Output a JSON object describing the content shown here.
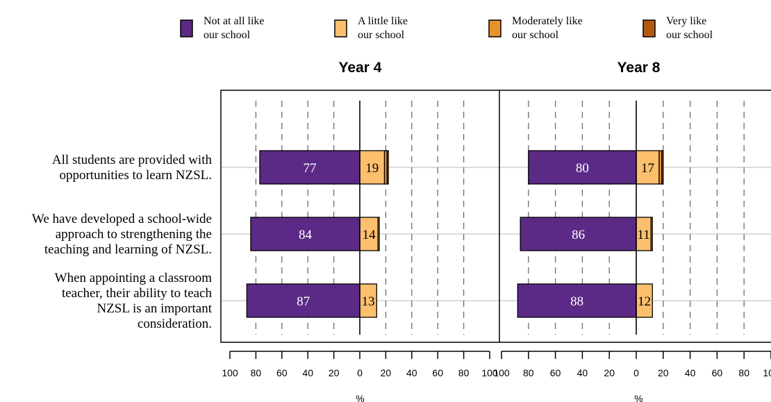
{
  "chart_data": {
    "type": "bar",
    "orientation": "horizontal-diverging",
    "legend": [
      {
        "name": "Not at all like\nour school",
        "color": "#5b2a86"
      },
      {
        "name": "A little like\nour school",
        "color": "#fbbf6e"
      },
      {
        "name": "Moderately like\nour school",
        "color": "#e8922a"
      },
      {
        "name": "Very like\nour school",
        "color": "#b35a12"
      }
    ],
    "categories": [
      "All students are provided with\nopportunities to learn NZSL.",
      "We have developed a school-wide\napproach to strengthening the\nteaching and learning of NZSL.",
      "When appointing a classroom\nteacher, their ability to teach\nNZSL is an important\nconsideration."
    ],
    "xlim": [
      -100,
      100
    ],
    "xticks": [
      "100",
      "80",
      "60",
      "40",
      "20",
      "0",
      "20",
      "40",
      "60",
      "80",
      "100"
    ],
    "xlabel": "%",
    "panels": [
      {
        "title": "Year 4",
        "series": [
          {
            "name": "Not at all like our school",
            "values": [
              77,
              84,
              87
            ]
          },
          {
            "name": "A little like our school",
            "values": [
              19,
              14,
              13
            ]
          },
          {
            "name": "Moderately like our school",
            "values": [
              2,
              1,
              0
            ]
          },
          {
            "name": "Very like our school",
            "values": [
              1,
              0,
              0
            ]
          }
        ]
      },
      {
        "title": "Year 8",
        "series": [
          {
            "name": "Not at all like our school",
            "values": [
              80,
              86,
              88
            ]
          },
          {
            "name": "A little like our school",
            "values": [
              17,
              11,
              12
            ]
          },
          {
            "name": "Moderately like our school",
            "values": [
              2,
              1,
              0
            ]
          },
          {
            "name": "Very like our school",
            "values": [
              1,
              0,
              0
            ]
          }
        ]
      }
    ],
    "data_labels": {
      "panel_0": [
        [
          "77",
          "19"
        ],
        [
          "84",
          "14"
        ],
        [
          "87",
          "13"
        ]
      ],
      "panel_1": [
        [
          "80",
          "17"
        ],
        [
          "86",
          "11"
        ],
        [
          "88",
          "12"
        ]
      ]
    }
  }
}
